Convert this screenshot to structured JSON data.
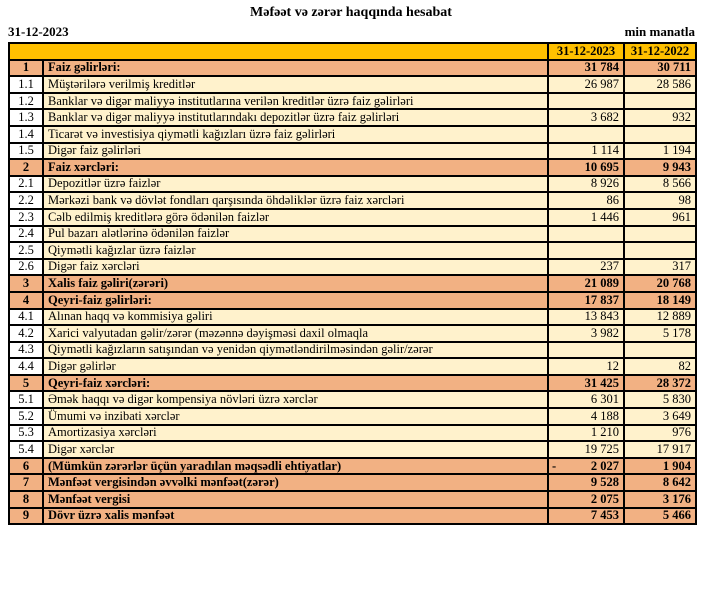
{
  "title": "Məfəət və zərər haqqında hesabat",
  "date_label": "31-12-2023",
  "unit_label": "min manatla",
  "colors": {
    "header_gold": "#FFC000",
    "section_salmon": "#F2B183",
    "sub_cream": "#FFF2CC",
    "sub_number_white": "#FFFFFF",
    "border": "#000000"
  },
  "table": {
    "col_2023": "31-12-2023",
    "col_2022": "31-12-2022",
    "rows": [
      {
        "num": "1",
        "type": "section",
        "label": "Faiz gəlirləri:",
        "v2023": "31 784",
        "v2022": "30 711"
      },
      {
        "num": "1.1",
        "type": "sub",
        "label": "Müştərilərə verilmiş kreditlər",
        "v2023": "26 987",
        "v2022": "28 586"
      },
      {
        "num": "1.2",
        "type": "sub",
        "label": "Banklar və digər maliyyə institutlarına verilən kreditlər üzrə faiz gəlirləri",
        "v2023": "",
        "v2022": ""
      },
      {
        "num": "1.3",
        "type": "sub",
        "label": "Banklar və digər maliyyə institutlarındakı depozitlər üzrə faiz gəlirləri",
        "v2023": "3 682",
        "v2022": "932"
      },
      {
        "num": "1.4",
        "type": "sub",
        "label": "Ticarət və investisiya qiymətli kağızları üzrə faiz gəlirləri",
        "v2023": "",
        "v2022": ""
      },
      {
        "num": "1.5",
        "type": "sub",
        "label": "Digər faiz gəlirləri",
        "v2023": "1 114",
        "v2022": "1 194"
      },
      {
        "num": "2",
        "type": "section",
        "label": "Faiz xərcləri:",
        "v2023": "10 695",
        "v2022": "9 943"
      },
      {
        "num": "2.1",
        "type": "sub",
        "label": "Depozitlər üzrə faizlər",
        "v2023": "8 926",
        "v2022": "8 566"
      },
      {
        "num": "2.2",
        "type": "sub",
        "label": "Mərkəzi bank və dövlət fondları qarşısında öhdəliklər üzrə faiz xərcləri",
        "v2023": "86",
        "v2022": "98"
      },
      {
        "num": "2.3",
        "type": "sub",
        "label": "Cəlb edilmiş kreditlərə görə ödənilən faizlər",
        "v2023": "1 446",
        "v2022": "961"
      },
      {
        "num": "2.4",
        "type": "sub",
        "label": "Pul bazarı alətlərinə ödənilən faizlər",
        "v2023": "",
        "v2022": ""
      },
      {
        "num": "2.5",
        "type": "sub",
        "label": "Qiymətli kağızlar üzrə faizlər",
        "v2023": "",
        "v2022": ""
      },
      {
        "num": "2.6",
        "type": "sub",
        "label": "Digər faiz xərcləri",
        "v2023": "237",
        "v2022": "317"
      },
      {
        "num": "3",
        "type": "section",
        "label": "Xalis faiz gəliri(zərəri)",
        "v2023": "21 089",
        "v2022": "20 768"
      },
      {
        "num": "4",
        "type": "section",
        "label": "Qeyri-faiz gəlirləri:",
        "v2023": "17 837",
        "v2022": "18 149"
      },
      {
        "num": "4.1",
        "type": "sub",
        "label": "Alınan haqq və kommisiya gəliri",
        "v2023": "13 843",
        "v2022": "12 889"
      },
      {
        "num": "4.2",
        "type": "sub",
        "label": "Xarici valyutadan gəlir/zərər (məzənnə dəyişməsi daxil olmaqla",
        "v2023": "3 982",
        "v2022": "5 178"
      },
      {
        "num": "4.3",
        "type": "sub",
        "label": "Qiymətli kağızların satışından və yenidən qiymətləndirilməsindən gəlir/zərər",
        "v2023": "",
        "v2022": ""
      },
      {
        "num": "4.4",
        "type": "sub",
        "label": "Digər gəlirlər",
        "v2023": "12",
        "v2022": "82"
      },
      {
        "num": "5",
        "type": "section",
        "label": "Qeyri-faiz xərcləri:",
        "v2023": "31 425",
        "v2022": "28 372"
      },
      {
        "num": "5.1",
        "type": "sub",
        "label": "Əmək haqqı və digər kompensiya növləri üzrə xərclər",
        "v2023": "6 301",
        "v2022": "5 830"
      },
      {
        "num": "5.2",
        "type": "sub",
        "label": "Ümumi və inzibati xərclər",
        "v2023": "4 188",
        "v2022": "3 649"
      },
      {
        "num": "5.3",
        "type": "sub",
        "label": "Amortizasiya xərcləri",
        "v2023": "1 210",
        "v2022": "976"
      },
      {
        "num": "5.4",
        "type": "sub",
        "label": "Digər xərclər",
        "v2023": "19 725",
        "v2022": "17 917"
      },
      {
        "num": "6",
        "type": "section",
        "label": "(Mümkün zərərlər üçün yaradılan məqsədli ehtiyatlar)",
        "v2023_prefix": "-",
        "v2023": "2 027",
        "v2022": "1 904"
      },
      {
        "num": "7",
        "type": "section",
        "label": "Mənfəət vergisindən əvvəlki mənfəət(zərər)",
        "v2023": "9 528",
        "v2022": "8 642"
      },
      {
        "num": "8",
        "type": "section",
        "label": "Mənfəət vergisi",
        "v2023": "2 075",
        "v2022": "3 176"
      },
      {
        "num": "9",
        "type": "section",
        "label": "Dövr üzrə xalis mənfəət",
        "v2023": "7 453",
        "v2022": "5 466"
      }
    ]
  }
}
